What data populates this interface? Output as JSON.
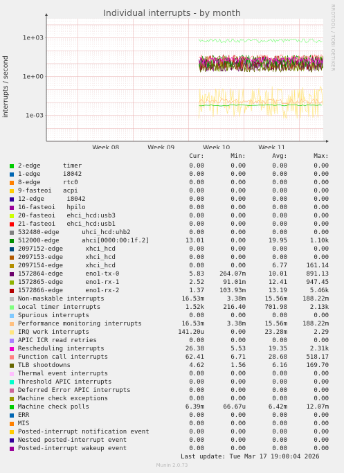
{
  "title": "Individual interrupts - by month",
  "watermark": "RRDTOOL / TOBI OETIKER",
  "footer": "Last update: Tue Mar 17 19:00:04 2026",
  "munin_version": "Munin 2.0.73",
  "columns": {
    "cur": "Cur:",
    "min": "Min:",
    "avg": "Avg:",
    "max": "Max:"
  },
  "chart_data": {
    "type": "line",
    "title": "Individual interrupts - by month",
    "ylabel": "interrupts / second",
    "yscale": "log",
    "ylim": [
      1e-05,
      30000
    ],
    "yticks": [
      "1e-03",
      "1e+00",
      "1e+03"
    ],
    "xticks": [
      "Week 08",
      "Week 09",
      "Week 10",
      "Week 11"
    ],
    "grid": true,
    "legend_position": "bottom",
    "series": [
      {
        "name": "2-edge      timer",
        "color": "#00cc00",
        "cur": "0.00",
        "min": "0.00",
        "avg": "0.00",
        "max": "0.00"
      },
      {
        "name": "1-edge      i8042",
        "color": "#0066b3",
        "cur": "0.00",
        "min": "0.00",
        "avg": "0.00",
        "max": "0.00"
      },
      {
        "name": "8-edge      rtc0",
        "color": "#ff8000",
        "cur": "0.00",
        "min": "0.00",
        "avg": "0.00",
        "max": "0.00"
      },
      {
        "name": "9-fasteoi   acpi",
        "color": "#ffcc00",
        "cur": "0.00",
        "min": "0.00",
        "avg": "0.00",
        "max": "0.00"
      },
      {
        "name": "12-edge      i8042",
        "color": "#330099",
        "cur": "0.00",
        "min": "0.00",
        "avg": "0.00",
        "max": "0.00"
      },
      {
        "name": "16-fasteoi   hpilo",
        "color": "#990099",
        "cur": "0.00",
        "min": "0.00",
        "avg": "0.00",
        "max": "0.00"
      },
      {
        "name": "20-fasteoi   ehci_hcd:usb3",
        "color": "#ccff00",
        "cur": "0.00",
        "min": "0.00",
        "avg": "0.00",
        "max": "0.00"
      },
      {
        "name": "21-fasteoi   ehci_hcd:usb1",
        "color": "#ff0000",
        "cur": "0.00",
        "min": "0.00",
        "avg": "0.00",
        "max": "0.00"
      },
      {
        "name": "532480-edge      uhci_hcd:uhb2",
        "color": "#808080",
        "cur": "0.00",
        "min": "0.00",
        "avg": "0.00",
        "max": "0.00"
      },
      {
        "name": "512000-edge      ahci[0000:00:1f.2]",
        "color": "#008f00",
        "cur": "13.01",
        "min": "0.00",
        "avg": "19.95",
        "max": "1.10k"
      },
      {
        "name": "2097152-edge      xhci_hcd",
        "color": "#00487d",
        "cur": "0.00",
        "min": "0.00",
        "avg": "0.00",
        "max": "0.00"
      },
      {
        "name": "2097153-edge      xhci_hcd",
        "color": "#b35a00",
        "cur": "0.00",
        "min": "0.00",
        "avg": "0.00",
        "max": "0.00"
      },
      {
        "name": "2097154-edge      xhci_hcd",
        "color": "#b38f00",
        "cur": "0.00",
        "min": "0.00",
        "avg": "6.77",
        "max": "161.14"
      },
      {
        "name": "1572864-edge      eno1-tx-0",
        "color": "#6b006b",
        "cur": "5.83",
        "min": "264.07m",
        "avg": "10.01",
        "max": "891.13"
      },
      {
        "name": "1572865-edge      eno1-rx-1",
        "color": "#8fb300",
        "cur": "2.52",
        "min": "91.01m",
        "avg": "12.41",
        "max": "947.45"
      },
      {
        "name": "1572866-edge      eno1-rx-2",
        "color": "#b30000",
        "cur": "1.37",
        "min": "103.93m",
        "avg": "13.19",
        "max": "5.46k"
      },
      {
        "name": "Non-maskable interrupts",
        "color": "#bebebe",
        "cur": "16.53m",
        "min": "3.38m",
        "avg": "15.56m",
        "max": "188.22m"
      },
      {
        "name": "Local timer interrupts",
        "color": "#80ff80",
        "cur": "1.52k",
        "min": "216.40",
        "avg": "701.98",
        "max": "2.13k"
      },
      {
        "name": "Spurious interrupts",
        "color": "#80c9ff",
        "cur": "0.00",
        "min": "0.00",
        "avg": "0.00",
        "max": "0.00"
      },
      {
        "name": "Performance monitoring interrupts",
        "color": "#ffc080",
        "cur": "16.53m",
        "min": "3.38m",
        "avg": "15.56m",
        "max": "188.22m"
      },
      {
        "name": "IRQ work interrupts",
        "color": "#ffe680",
        "cur": "141.20u",
        "min": "0.00",
        "avg": "23.28m",
        "max": "2.29"
      },
      {
        "name": "APIC ICR read retries",
        "color": "#aa80ff",
        "cur": "0.00",
        "min": "0.00",
        "avg": "0.00",
        "max": "0.00"
      },
      {
        "name": "Rescheduling interrupts",
        "color": "#ee00cc",
        "cur": "26.38",
        "min": "5.53",
        "avg": "19.35",
        "max": "2.31k"
      },
      {
        "name": "Function call interrupts",
        "color": "#ff8080",
        "cur": "62.41",
        "min": "6.71",
        "avg": "28.68",
        "max": "518.17"
      },
      {
        "name": "TLB shootdowns",
        "color": "#666600",
        "cur": "4.62",
        "min": "1.56",
        "avg": "6.16",
        "max": "169.70"
      },
      {
        "name": "Thermal event interrupts",
        "color": "#ffbfff",
        "cur": "0.00",
        "min": "0.00",
        "avg": "0.00",
        "max": "0.00"
      },
      {
        "name": "Threshold APIC interrupts",
        "color": "#00ffcc",
        "cur": "0.00",
        "min": "0.00",
        "avg": "0.00",
        "max": "0.00"
      },
      {
        "name": "Deferred Error APIC interrupts",
        "color": "#cc6699",
        "cur": "0.00",
        "min": "0.00",
        "avg": "0.00",
        "max": "0.00"
      },
      {
        "name": "Machine check exceptions",
        "color": "#999900",
        "cur": "0.00",
        "min": "0.00",
        "avg": "0.00",
        "max": "0.00"
      },
      {
        "name": "Machine check polls",
        "color": "#00cc00",
        "cur": "6.39m",
        "min": "66.67u",
        "avg": "6.42m",
        "max": "12.07m"
      },
      {
        "name": "ERR",
        "color": "#0066b3",
        "cur": "0.00",
        "min": "0.00",
        "avg": "0.00",
        "max": "0.00"
      },
      {
        "name": "MIS",
        "color": "#ff8000",
        "cur": "0.00",
        "min": "0.00",
        "avg": "0.00",
        "max": "0.00"
      },
      {
        "name": "Posted-interrupt notification event",
        "color": "#ffcc00",
        "cur": "0.00",
        "min": "0.00",
        "avg": "0.00",
        "max": "0.00"
      },
      {
        "name": "Nested posted-interrupt event",
        "color": "#330099",
        "cur": "0.00",
        "min": "0.00",
        "avg": "0.00",
        "max": "0.00"
      },
      {
        "name": "Posted-interrupt wakeup event",
        "color": "#990099",
        "cur": "0.00",
        "min": "0.00",
        "avg": "0.00",
        "max": "0.00"
      }
    ]
  }
}
